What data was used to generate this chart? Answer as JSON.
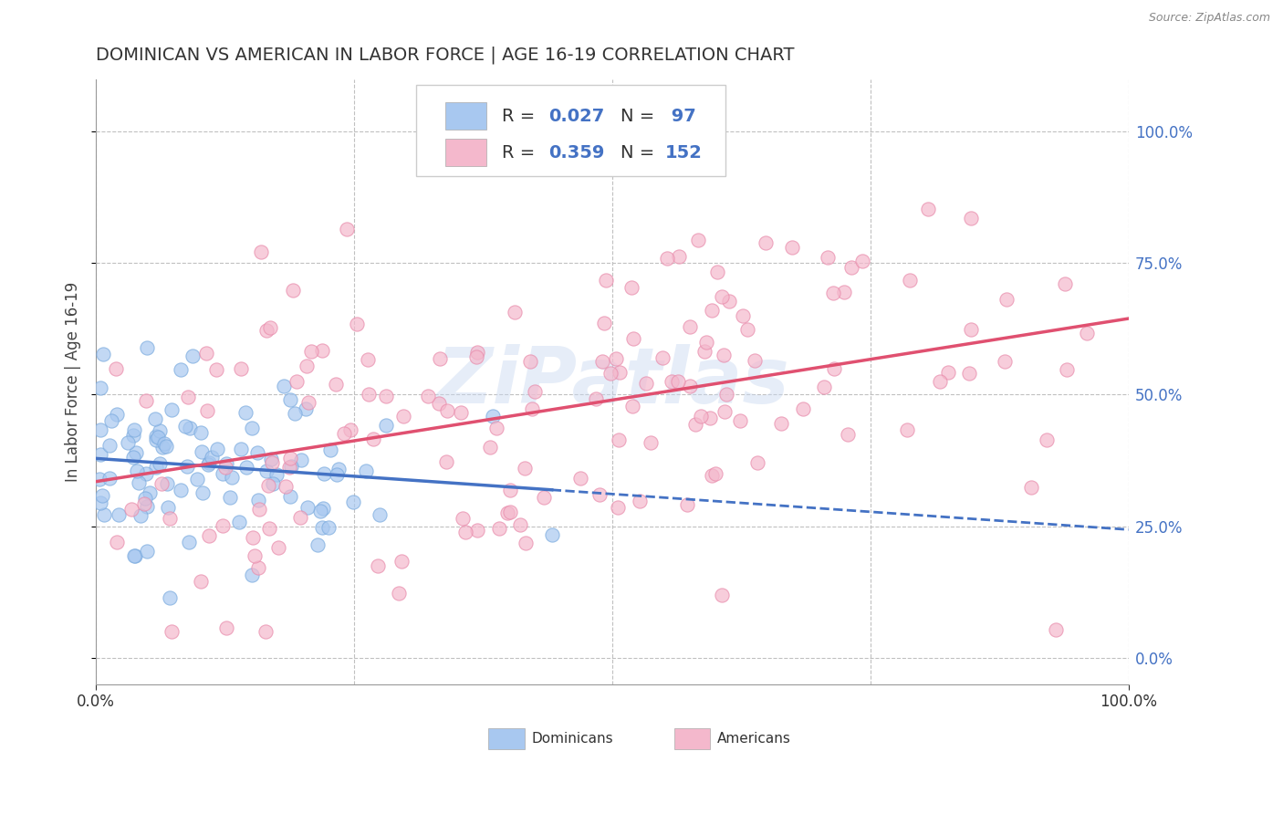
{
  "title": "DOMINICAN VS AMERICAN IN LABOR FORCE | AGE 16-19 CORRELATION CHART",
  "source": "Source: ZipAtlas.com",
  "ylabel": "In Labor Force | Age 16-19",
  "watermark": "ZiPatlas",
  "dominicans": {
    "label": "Dominicans",
    "scatter_color": "#a8c8f0",
    "scatter_edge": "#7aaade",
    "R": 0.027,
    "N": 97,
    "line_color": "#4472c4",
    "line_style": "solid"
  },
  "americans": {
    "label": "Americans",
    "scatter_color": "#f4b8cc",
    "scatter_edge": "#e88aaa",
    "R": 0.359,
    "N": 152,
    "line_color": "#e05070",
    "line_style": "solid"
  },
  "legend_text_color": "#333333",
  "legend_value_color": "#4472c4",
  "xlim": [
    0.0,
    1.0
  ],
  "ylim": [
    -0.05,
    1.1
  ],
  "ytick_values": [
    0.0,
    0.25,
    0.5,
    0.75,
    1.0
  ],
  "xtick_values": [
    0.0,
    1.0
  ],
  "grid_color": "#c0c0c0",
  "background_color": "#ffffff",
  "title_fontsize": 14,
  "axis_label_fontsize": 12,
  "tick_fontsize": 12,
  "legend_fontsize": 14
}
